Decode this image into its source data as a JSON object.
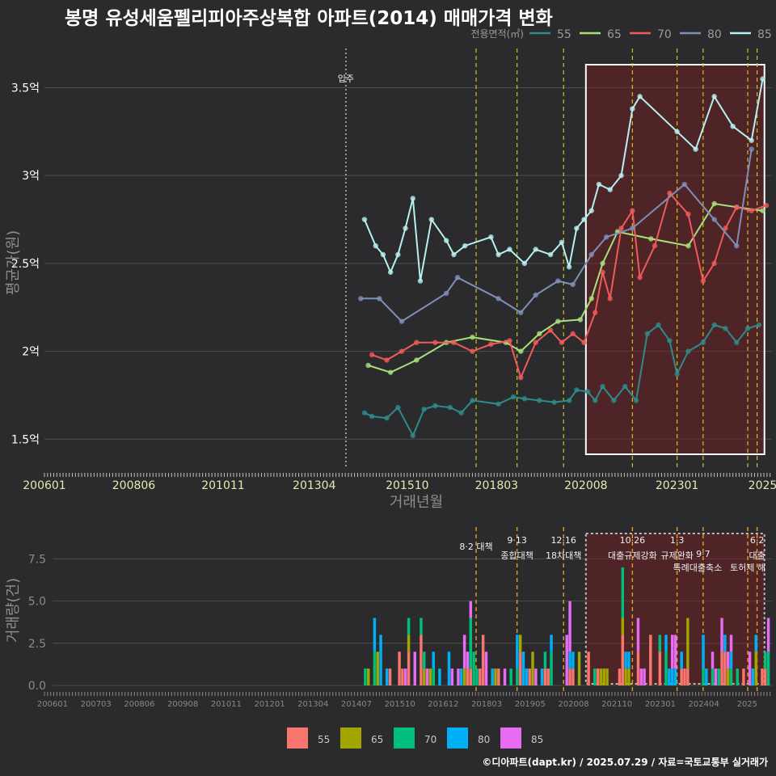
{
  "title": "봉명 유성세움펠리피아주상복합 아파트(2014) 매매가격 변화",
  "footer": "©디아파트(dapt.kr) / 2025.07.29 / 자료=국토교통부 실거래가",
  "colors": {
    "55": "#f8766d",
    "65": "#a3a500",
    "70": "#00bf7d",
    "80": "#00b0f6",
    "85": "#e76bf3",
    "bg": "#2b2b2d",
    "highlight": "#7a1c22"
  },
  "line_colors": {
    "55": "#2e8b8b",
    "65": "#a8e07a",
    "70": "#f05a5a",
    "80": "#7f8fb8",
    "85": "#b7f0f0"
  },
  "chart_data": [
    {
      "type": "line",
      "title": "봉명 유성세움펠리피아주상복합 아파트(2014) 매매가격 변화",
      "xlabel": "거래년월",
      "ylabel": "평균가(원)",
      "legend_title": "전용면적(㎡)",
      "legend_position": "top-right",
      "x_tick_labels": [
        "200601",
        "200806",
        "201011",
        "201304",
        "201510",
        "201803",
        "202008",
        "202301",
        "2025"
      ],
      "y_tick_labels": [
        "1.5억",
        "2억",
        "2.5억",
        "3억",
        "3.5억"
      ],
      "ylim": [
        1.4,
        3.7
      ],
      "annotation": "입주",
      "annotation_x": 2014.1,
      "policy_dates": [
        2017.6,
        2018.7,
        2019.95,
        2021.8,
        2023.0,
        2023.7,
        2024.9,
        2025.15
      ],
      "highlight_range": [
        2020.55,
        2025.5
      ],
      "series": [
        {
          "name": "55",
          "points": [
            [
              2014.6,
              1.65
            ],
            [
              2014.8,
              1.63
            ],
            [
              2015.2,
              1.62
            ],
            [
              2015.5,
              1.68
            ],
            [
              2015.9,
              1.52
            ],
            [
              2016.2,
              1.67
            ],
            [
              2016.5,
              1.69
            ],
            [
              2016.9,
              1.68
            ],
            [
              2017.2,
              1.65
            ],
            [
              2017.5,
              1.72
            ],
            [
              2018.2,
              1.7
            ],
            [
              2018.6,
              1.74
            ],
            [
              2018.9,
              1.73
            ],
            [
              2019.3,
              1.72
            ],
            [
              2019.7,
              1.71
            ],
            [
              2020.1,
              1.72
            ],
            [
              2020.3,
              1.78
            ],
            [
              2020.6,
              1.77
            ],
            [
              2020.8,
              1.72
            ],
            [
              2021.0,
              1.8
            ],
            [
              2021.3,
              1.72
            ],
            [
              2021.6,
              1.8
            ],
            [
              2021.9,
              1.72
            ],
            [
              2022.2,
              2.1
            ],
            [
              2022.5,
              2.15
            ],
            [
              2022.8,
              2.06
            ],
            [
              2023.0,
              1.87
            ],
            [
              2023.3,
              2.0
            ],
            [
              2023.7,
              2.05
            ],
            [
              2024.0,
              2.15
            ],
            [
              2024.3,
              2.13
            ],
            [
              2024.6,
              2.05
            ],
            [
              2024.9,
              2.13
            ],
            [
              2025.2,
              2.15
            ]
          ]
        },
        {
          "name": "65",
          "points": [
            [
              2014.7,
              1.92
            ],
            [
              2015.3,
              1.88
            ],
            [
              2016.0,
              1.95
            ],
            [
              2016.8,
              2.05
            ],
            [
              2017.5,
              2.08
            ],
            [
              2018.4,
              2.05
            ],
            [
              2018.8,
              2.0
            ],
            [
              2019.3,
              2.1
            ],
            [
              2019.8,
              2.17
            ],
            [
              2020.4,
              2.18
            ],
            [
              2020.7,
              2.3
            ],
            [
              2021.0,
              2.5
            ],
            [
              2021.4,
              2.68
            ],
            [
              2022.3,
              2.64
            ],
            [
              2023.3,
              2.6
            ],
            [
              2024.0,
              2.84
            ],
            [
              2024.6,
              2.82
            ],
            [
              2025.3,
              2.8
            ]
          ]
        },
        {
          "name": "70",
          "points": [
            [
              2014.8,
              1.98
            ],
            [
              2015.2,
              1.95
            ],
            [
              2015.6,
              2.0
            ],
            [
              2016.0,
              2.05
            ],
            [
              2016.5,
              2.05
            ],
            [
              2017.0,
              2.05
            ],
            [
              2017.5,
              2.0
            ],
            [
              2018.0,
              2.04
            ],
            [
              2018.5,
              2.06
            ],
            [
              2018.8,
              1.85
            ],
            [
              2019.2,
              2.05
            ],
            [
              2019.6,
              2.12
            ],
            [
              2019.9,
              2.05
            ],
            [
              2020.2,
              2.1
            ],
            [
              2020.5,
              2.05
            ],
            [
              2020.8,
              2.22
            ],
            [
              2021.0,
              2.45
            ],
            [
              2021.2,
              2.3
            ],
            [
              2021.5,
              2.7
            ],
            [
              2021.8,
              2.8
            ],
            [
              2022.0,
              2.42
            ],
            [
              2022.4,
              2.6
            ],
            [
              2022.8,
              2.9
            ],
            [
              2023.3,
              2.78
            ],
            [
              2023.7,
              2.4
            ],
            [
              2024.0,
              2.5
            ],
            [
              2024.3,
              2.7
            ],
            [
              2024.6,
              2.82
            ],
            [
              2025.0,
              2.8
            ],
            [
              2025.4,
              2.83
            ]
          ]
        },
        {
          "name": "80",
          "points": [
            [
              2014.5,
              2.3
            ],
            [
              2015.0,
              2.3
            ],
            [
              2015.6,
              2.17
            ],
            [
              2016.8,
              2.33
            ],
            [
              2017.1,
              2.42
            ],
            [
              2018.2,
              2.3
            ],
            [
              2018.8,
              2.22
            ],
            [
              2019.2,
              2.32
            ],
            [
              2019.8,
              2.4
            ],
            [
              2020.2,
              2.38
            ],
            [
              2020.7,
              2.55
            ],
            [
              2021.1,
              2.65
            ],
            [
              2021.8,
              2.7
            ],
            [
              2023.2,
              2.95
            ],
            [
              2024.0,
              2.75
            ],
            [
              2024.6,
              2.6
            ],
            [
              2025.0,
              3.15
            ]
          ]
        },
        {
          "name": "85",
          "points": [
            [
              2014.6,
              2.75
            ],
            [
              2014.9,
              2.6
            ],
            [
              2015.1,
              2.55
            ],
            [
              2015.3,
              2.45
            ],
            [
              2015.5,
              2.55
            ],
            [
              2015.7,
              2.7
            ],
            [
              2015.9,
              2.87
            ],
            [
              2016.1,
              2.4
            ],
            [
              2016.4,
              2.75
            ],
            [
              2016.8,
              2.63
            ],
            [
              2017.0,
              2.55
            ],
            [
              2017.3,
              2.6
            ],
            [
              2018.0,
              2.65
            ],
            [
              2018.2,
              2.55
            ],
            [
              2018.5,
              2.58
            ],
            [
              2018.9,
              2.5
            ],
            [
              2019.2,
              2.58
            ],
            [
              2019.6,
              2.55
            ],
            [
              2019.9,
              2.62
            ],
            [
              2020.1,
              2.48
            ],
            [
              2020.3,
              2.7
            ],
            [
              2020.5,
              2.75
            ],
            [
              2020.7,
              2.8
            ],
            [
              2020.9,
              2.95
            ],
            [
              2021.2,
              2.92
            ],
            [
              2021.5,
              3.0
            ],
            [
              2021.8,
              3.38
            ],
            [
              2022.0,
              3.45
            ],
            [
              2023.0,
              3.25
            ],
            [
              2023.5,
              3.15
            ],
            [
              2024.0,
              3.45
            ],
            [
              2024.5,
              3.28
            ],
            [
              2025.0,
              3.2
            ],
            [
              2025.3,
              3.55
            ]
          ]
        }
      ]
    },
    {
      "type": "bar",
      "ylabel": "거래량(건)",
      "x_tick_labels": [
        "200601",
        "200703",
        "200806",
        "200908",
        "201011",
        "201201",
        "201304",
        "201407",
        "201510",
        "201612",
        "201803",
        "201905",
        "202008",
        "202110",
        "202301",
        "202404",
        "2025"
      ],
      "y_tick_labels": [
        "0.0",
        "2.5",
        "5.0",
        "7.5"
      ],
      "ylim": [
        0,
        9
      ],
      "legend_position": "bottom",
      "series_names": [
        "55",
        "65",
        "70",
        "80",
        "85"
      ],
      "policy_annotations": [
        {
          "label": "8·2 대책",
          "x": 2017.6
        },
        {
          "label": "9·13 종합대책",
          "x": 2018.7
        },
        {
          "label": "12·16 18차대책",
          "x": 2019.95
        },
        {
          "label": "10·26 대출규제강화",
          "x": 2021.8
        },
        {
          "label": "1·3 규제완화",
          "x": 2023.0
        },
        {
          "label": "9·7 특례대출축소",
          "x": 2023.7
        },
        {
          "label": "토허제 해",
          "x": 2024.9
        },
        {
          "label": "6·27 대출",
          "x": 2025.15
        }
      ],
      "policy_text": {
        "a1": "8·2 대책",
        "b1": "9·13",
        "b2": "종합대책",
        "c1": "12·16",
        "c2": "18차대책",
        "d1": "10·26",
        "d2": "대출규제강화",
        "e1": "1·3",
        "e2": "규제완화",
        "f1": "9·7",
        "f2": "특례대출축소",
        "g2": "토허제 해",
        "h1": "6·2",
        "h2": "대출"
      },
      "highlight_range": [
        2020.55,
        2025.5
      ]
    }
  ]
}
